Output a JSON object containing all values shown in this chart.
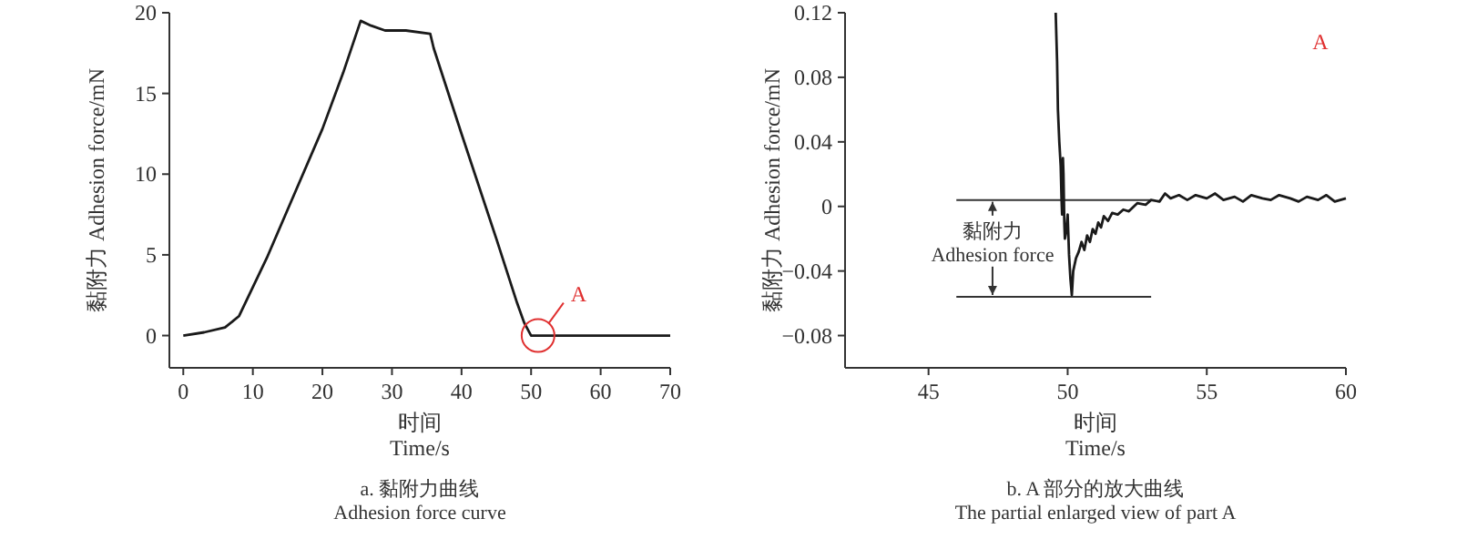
{
  "chart_data": [
    {
      "type": "line",
      "title": "a. 黏附力曲线\nAdhesion force curve",
      "xlabel": "时间\nTime/s",
      "ylabel": "黏附力 Adhesion force/mN",
      "xlim": [
        -2,
        70
      ],
      "ylim": [
        -2,
        20
      ],
      "xticks": [
        0,
        10,
        20,
        30,
        40,
        50,
        60,
        70
      ],
      "yticks": [
        0,
        5,
        10,
        15,
        20
      ],
      "grid": false,
      "x": [
        0,
        3,
        6,
        8,
        10,
        12,
        15,
        20,
        23,
        25.5,
        27,
        29,
        32,
        35.5,
        36,
        40,
        45,
        48,
        49,
        50,
        70
      ],
      "series": [
        {
          "color": "#1a1a1a",
          "values": [
            0,
            0.2,
            0.5,
            1.2,
            3,
            4.8,
            7.8,
            12.8,
            16.3,
            19.5,
            19.2,
            18.9,
            18.9,
            18.7,
            17.8,
            12.5,
            6,
            2,
            0.8,
            0,
            0
          ]
        }
      ],
      "annotations": [
        {
          "text": "A",
          "x": 51,
          "y": 0
        }
      ]
    },
    {
      "type": "line",
      "title": "b. A 部分的放大曲线\nThe partial enlarged view of part A",
      "xlabel": "时间\nTime/s",
      "ylabel": "黏附力 Adhesion force/mN",
      "xlim": [
        42,
        60
      ],
      "ylim": [
        -0.1,
        0.12
      ],
      "xticks": [
        45,
        50,
        55,
        60
      ],
      "yticks": [
        {
          "value": -0.08,
          "label": "−0.08"
        },
        {
          "value": -0.04,
          "label": "−0.04"
        },
        0,
        0.04,
        0.08,
        0.12
      ],
      "grid": false,
      "x": [
        49.57,
        49.62,
        49.65,
        49.7,
        49.75,
        49.78,
        49.8,
        49.83,
        49.85,
        49.88,
        49.9,
        49.95,
        50.0,
        50.05,
        50.1,
        50.15,
        50.2,
        50.3,
        50.4,
        50.5,
        50.6,
        50.7,
        50.8,
        50.9,
        51,
        51.1,
        51.2,
        51.3,
        51.45,
        51.6,
        51.8,
        52,
        52.2,
        52.5,
        52.8,
        53,
        53.3,
        53.5,
        53.7,
        54,
        54.3,
        54.6,
        55,
        55.3,
        55.6,
        56,
        56.3,
        56.6,
        57,
        57.3,
        57.6,
        58,
        58.3,
        58.6,
        59,
        59.3,
        59.6,
        60
      ],
      "series": [
        {
          "color": "#1a1a1a",
          "values": [
            0.12,
            0.09,
            0.06,
            0.04,
            0.025,
            0.005,
            -0.005,
            0.03,
            0.02,
            -0.01,
            -0.02,
            -0.015,
            -0.005,
            -0.03,
            -0.045,
            -0.055,
            -0.04,
            -0.032,
            -0.028,
            -0.022,
            -0.027,
            -0.018,
            -0.022,
            -0.014,
            -0.017,
            -0.01,
            -0.013,
            -0.006,
            -0.009,
            -0.004,
            -0.005,
            -0.002,
            -0.003,
            0.002,
            0.001,
            0.004,
            0.003,
            0.008,
            0.005,
            0.007,
            0.004,
            0.007,
            0.005,
            0.008,
            0.004,
            0.006,
            0.003,
            0.007,
            0.005,
            0.004,
            0.007,
            0.005,
            0.003,
            0.006,
            0.004,
            0.007,
            0.003,
            0.005
          ]
        }
      ],
      "ref_lines": [
        {
          "axis": "y",
          "value": 0.004,
          "label": "黏附力\nAdhesion force"
        },
        {
          "axis": "y",
          "value": -0.056
        }
      ],
      "annotations": [
        "A"
      ]
    }
  ]
}
